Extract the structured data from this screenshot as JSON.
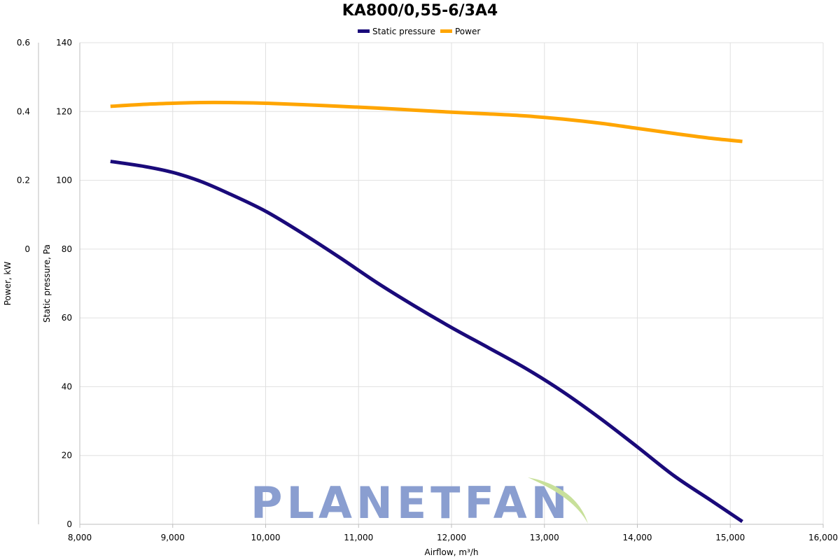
{
  "chart_data": {
    "type": "line",
    "title": "KA800/0,55-6/3A4",
    "xlabel": "Airflow, m³/h",
    "ylabel_left_inner": "Static pressure, Pa",
    "ylabel_left_outer": "Power, kW",
    "x_axis": {
      "range": [
        8000,
        16000
      ],
      "ticks": [
        8000,
        9000,
        10000,
        11000,
        12000,
        13000,
        14000,
        15000,
        16000
      ],
      "tick_labels": [
        "8,000",
        "9,000",
        "10,000",
        "11,000",
        "12,000",
        "13,000",
        "14,000",
        "15,000",
        "16,000"
      ]
    },
    "y_axis_pressure": {
      "range": [
        0,
        140
      ],
      "ticks": [
        0,
        20,
        40,
        60,
        80,
        100,
        120,
        140
      ],
      "tick_labels": [
        "0",
        "20",
        "40",
        "60",
        "80",
        "100",
        "120",
        "140"
      ]
    },
    "y_axis_power": {
      "range": [
        -0.8,
        0.6
      ],
      "ticks": [
        0,
        0.2,
        0.4,
        0.6
      ],
      "tick_labels": [
        "0",
        "0.2",
        "0.4",
        "0.6"
      ]
    },
    "grid": true,
    "legend": {
      "placement": "top-center"
    },
    "series": [
      {
        "name": "Static pressure",
        "axis": "pressure",
        "color": "#1a0a7a",
        "x": [
          8330,
          8700,
          9000,
          9300,
          9600,
          10000,
          10400,
          10800,
          11200,
          11600,
          12000,
          12400,
          12800,
          13200,
          13600,
          14000,
          14400,
          14800,
          15130
        ],
        "y": [
          105.5,
          104,
          102.3,
          99.7,
          96.2,
          91,
          84.5,
          77.5,
          70.2,
          63.5,
          57.2,
          51.3,
          45.3,
          38.5,
          30.8,
          22.5,
          14,
          6.8,
          0.8
        ]
      },
      {
        "name": "Power",
        "axis": "power",
        "color": "#ffa500",
        "x": [
          8330,
          8700,
          9000,
          9300,
          9600,
          10000,
          10400,
          10800,
          11200,
          11600,
          12000,
          12400,
          12800,
          13200,
          13600,
          14000,
          14400,
          14800,
          15130
        ],
        "y": [
          0.415,
          0.421,
          0.424,
          0.426,
          0.426,
          0.424,
          0.42,
          0.415,
          0.41,
          0.404,
          0.398,
          0.393,
          0.387,
          0.378,
          0.366,
          0.351,
          0.336,
          0.322,
          0.313
        ]
      }
    ]
  },
  "watermark": {
    "text": "PLANETFAN",
    "text_color": "#8a9ed0",
    "leaf_color": "#c8e09a"
  }
}
